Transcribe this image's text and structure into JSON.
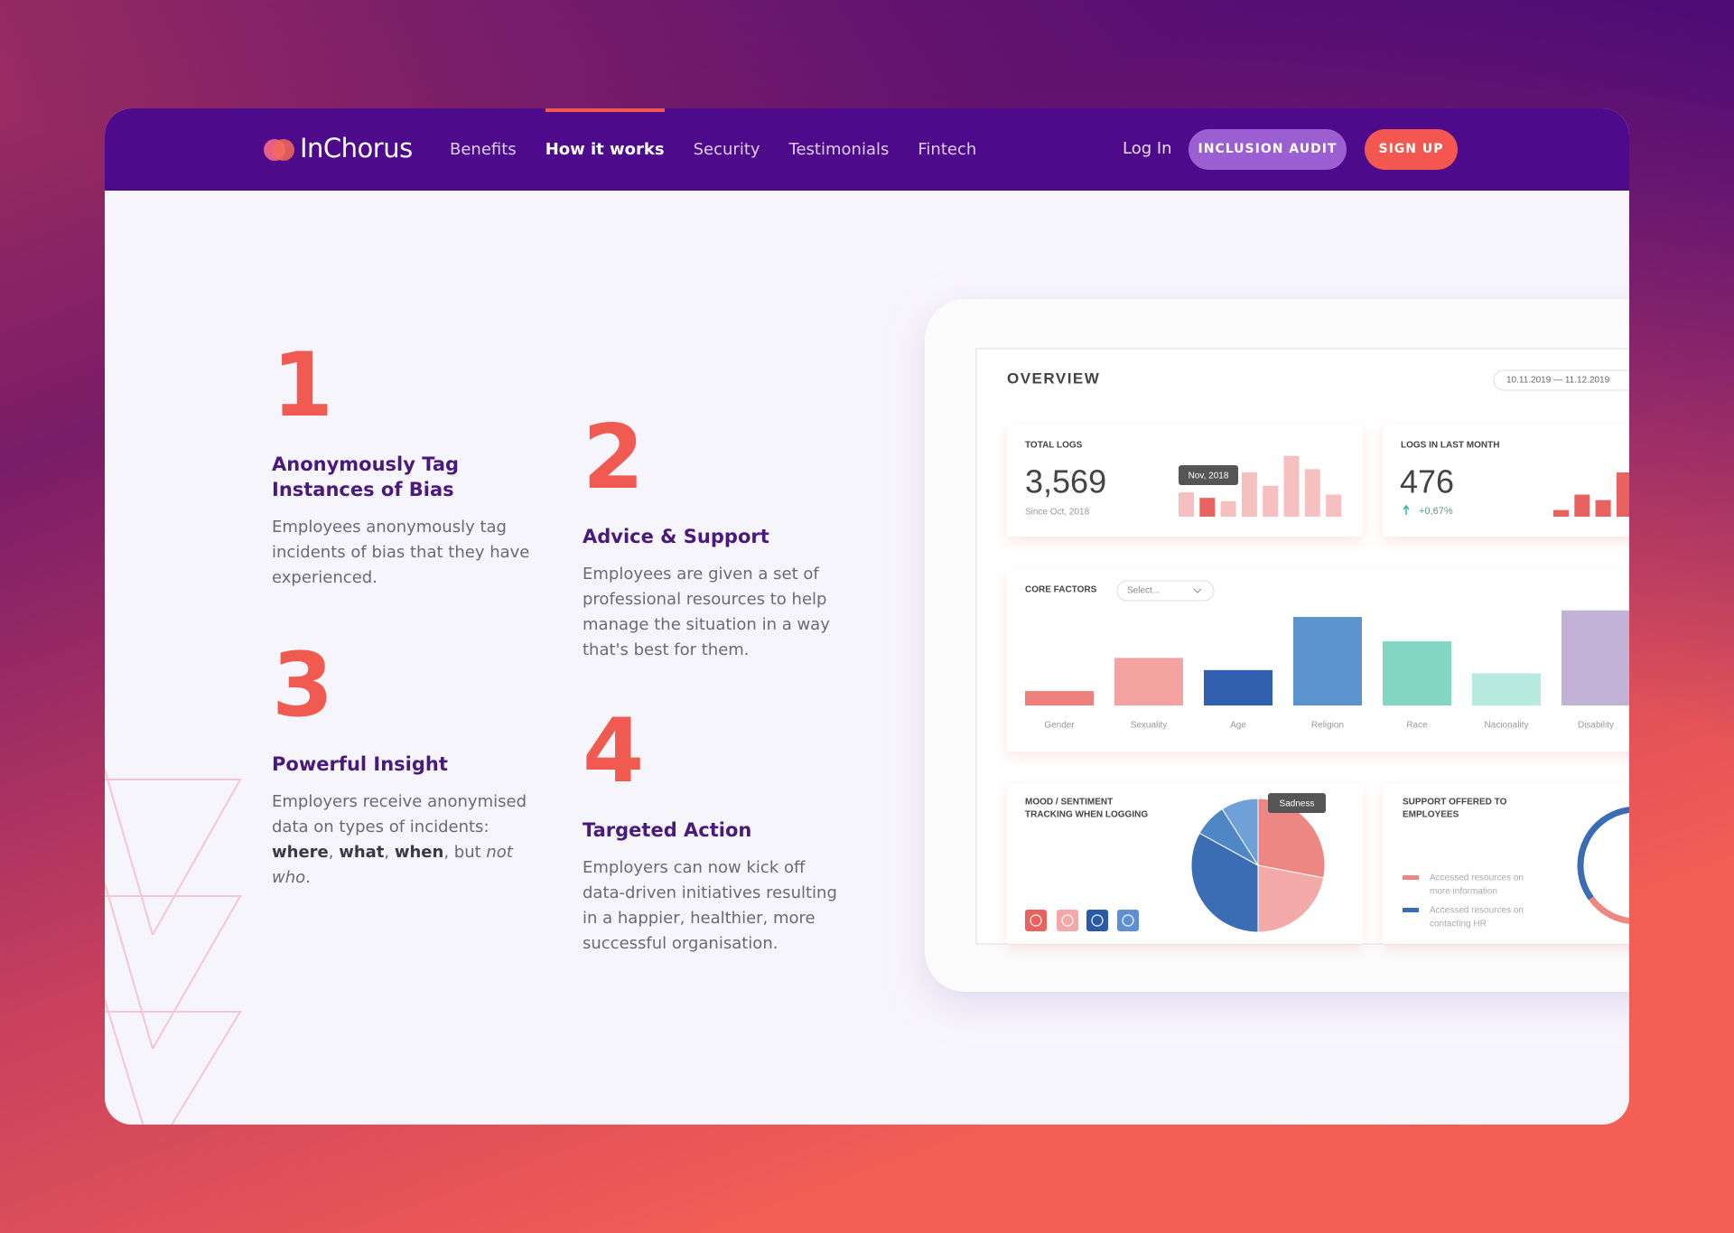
{
  "nav": {
    "logo": "InChorus",
    "links": [
      "Benefits",
      "How it works",
      "Security",
      "Testimonials",
      "Fintech"
    ],
    "active": 1,
    "login": "Log In",
    "audit": "INCLUSION AUDIT",
    "signup": "SIGN UP"
  },
  "steps": [
    {
      "number": "1",
      "title": [
        "Anonymously Tag",
        "Instances of Bias"
      ],
      "lines": [
        "Employees anonymously tag",
        "incidents of bias that they have",
        "experienced."
      ]
    },
    {
      "number": "2",
      "title": [
        "Advice & Support"
      ],
      "lines": [
        "Employees are given a set of",
        "professional resources to help",
        "manage the situation in a way",
        "that's best for them."
      ]
    },
    {
      "number": "3",
      "title": [
        "Powerful Insight"
      ],
      "lines": [
        "Employers receive anonymised",
        "data on types of incidents:",
        [
          {
            "text": "where",
            "b": true
          },
          {
            "text": ", "
          },
          {
            "text": "what",
            "b": true
          },
          {
            "text": ", "
          },
          {
            "text": "when",
            "b": true
          },
          {
            "text": ", but "
          },
          {
            "text": "not",
            "i": true
          }
        ],
        [
          {
            "text": "who",
            "i": true
          },
          {
            "text": "."
          }
        ]
      ]
    },
    {
      "number": "4",
      "title": [
        "Targeted Action"
      ],
      "lines": [
        "Employers can now kick off",
        "data-driven initiatives resulting",
        "in a happier, healthier, more",
        "successful organisation."
      ]
    }
  ],
  "dashboard": {
    "title": "OVERVIEW",
    "date_range": "10.11.2019 — 11.12.2019",
    "total_logs": {
      "label": "TOTAL LOGS",
      "value": "3,569",
      "note": "Since Oct, 2018",
      "tooltip": "Nov, 2018",
      "values": [
        22,
        17,
        14,
        40,
        28,
        55,
        43,
        20
      ],
      "color": "#f7c0c0",
      "highlight": 1,
      "highlight_color": "#e8625f"
    },
    "last_month": {
      "label": "LOGS IN LAST MONTH",
      "value": "476",
      "change": "+0,67%",
      "values": [
        6,
        20,
        15,
        40
      ],
      "color": "#e8625f"
    },
    "core_factors": {
      "label": "CORE FACTORS",
      "select": "Select...",
      "categories": [
        "Gender",
        "Sexuality",
        "Age",
        "Religion",
        "Race",
        "Nacionality",
        "Disability"
      ],
      "values": [
        13,
        43,
        32,
        80,
        58,
        29,
        86
      ],
      "colors": [
        "#ef7f7c",
        "#f4a3a0",
        "#2f5fae",
        "#5b93cf",
        "#82d6c2",
        "#b8ebdf",
        "#c2b2d6"
      ]
    },
    "mood": {
      "title": [
        "MOOD / SENTIMENT",
        "TRACKING WHEN LOGGING"
      ],
      "tooltip": "Sadness",
      "values": [
        28,
        22,
        33,
        8,
        9
      ],
      "colors": [
        "#ec8783",
        "#f4aaa8",
        "#3b6db5",
        "#4f86c6",
        "#6fa0d8"
      ]
    },
    "support": {
      "title": [
        "SUPPORT OFFERED TO",
        "EMPLOYEES"
      ],
      "legend": [
        [
          "Accessed resources on",
          "more information"
        ],
        [
          "Accessed resources on",
          "contacting HR"
        ]
      ],
      "values": [
        35,
        65
      ],
      "colors": [
        "#3b6db5",
        "#ec8783"
      ]
    }
  }
}
